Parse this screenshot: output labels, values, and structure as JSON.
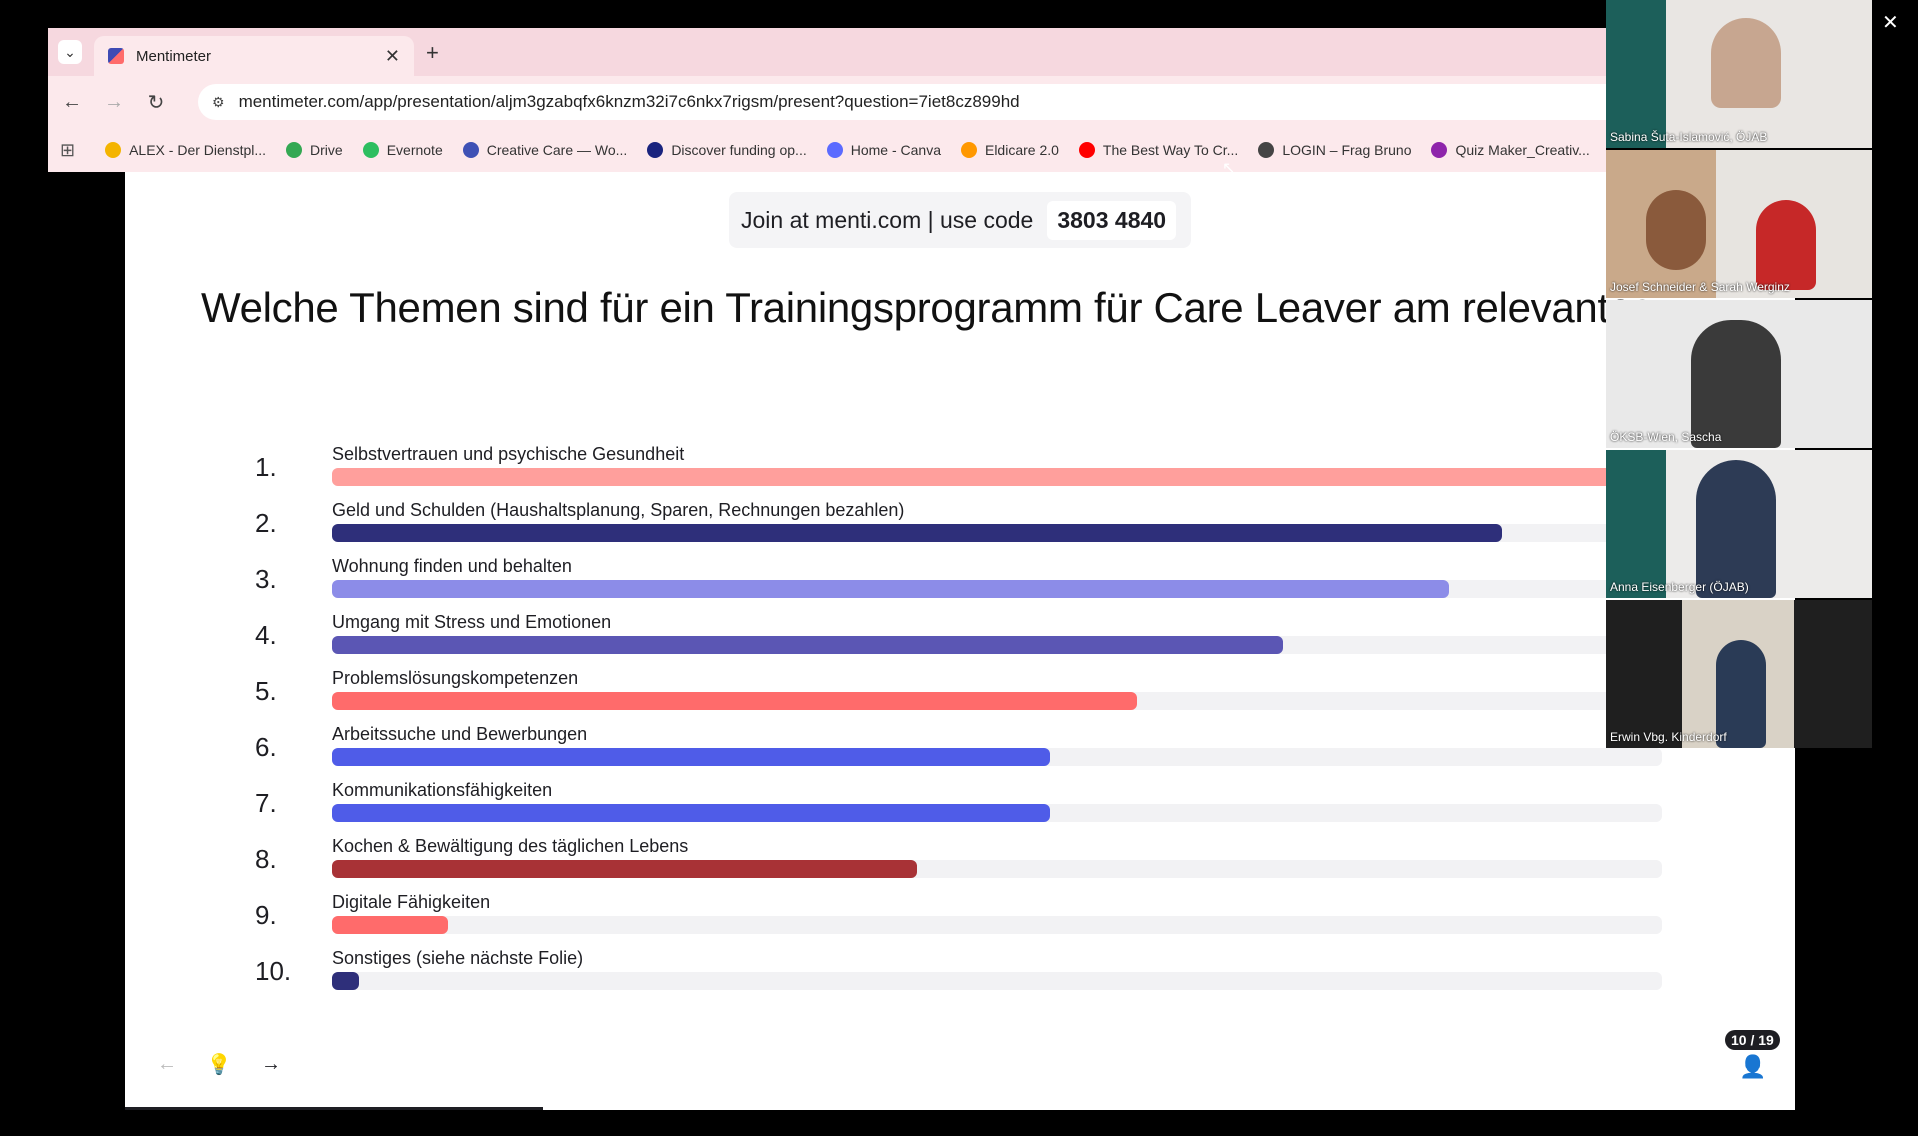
{
  "browser": {
    "tab_title": "Mentimeter",
    "url": "mentimeter.com/app/presentation/aljm3gzabqfx6knzm32i7c6nkx7rigsm/present?question=7iet8cz899hd",
    "bookmarks": [
      {
        "label": "ALEX - Der Dienstpl...",
        "color": "#f4b400"
      },
      {
        "label": "Drive",
        "color": "#34a853"
      },
      {
        "label": "Evernote",
        "color": "#2dbe60"
      },
      {
        "label": "Creative Care — Wo...",
        "color": "#3f51b5"
      },
      {
        "label": "Discover funding op...",
        "color": "#1a237e"
      },
      {
        "label": "Home - Canva",
        "color": "#5b6bff"
      },
      {
        "label": "Eldicare 2.0",
        "color": "#ff9800"
      },
      {
        "label": "The Best Way To Cr...",
        "color": "#ff0000"
      },
      {
        "label": "LOGIN – Frag Bruno",
        "color": "#444444"
      },
      {
        "label": "Quiz Maker_Creativ...",
        "color": "#8e24aa"
      }
    ]
  },
  "slide": {
    "join_text": "Join at menti.com | use code",
    "join_code": "3803 4840",
    "question": "Welche Themen sind für ein Trainingsprogramm für Care Leaver am relevantes",
    "counter": "10 / 19"
  },
  "chart_data": {
    "type": "bar",
    "categories": [
      "Selbstvertrauen und psychische Gesundheit",
      "Geld und Schulden (Haushaltsplanung, Sparen, Rechnungen bezahlen)",
      "Wohnung finden und behalten",
      "Umgang mit Stress und Emotionen",
      "Problemslösungskompetenzen",
      "Arbeitssuche und Bewerbungen",
      "Kommunikationsfähigkeiten",
      "Kochen & Bewältigung des täglichen Lebens",
      "Digitale Fähigkeiten",
      "Sonstiges (siehe nächste Folie)"
    ],
    "ranks": [
      "1.",
      "2.",
      "3.",
      "4.",
      "5.",
      "6.",
      "7.",
      "8.",
      "9.",
      "10."
    ],
    "values": [
      100,
      88,
      84,
      71.5,
      60.5,
      54,
      54,
      44,
      8.7,
      2
    ],
    "colors": [
      "#ff9f9c",
      "#2e2f7a",
      "#8c8ce8",
      "#5b56b4",
      "#ff6b6b",
      "#4f5ce8",
      "#4f5ce8",
      "#a83236",
      "#ff6b6b",
      "#2e2f7a"
    ],
    "ylim": [
      0,
      100
    ]
  },
  "participants": [
    {
      "name": "Sabina Šuta-Islamović, ÖJAB"
    },
    {
      "name": "Josef Schneider & Sarah Werginz"
    },
    {
      "name": "ÖKSB-Wien, Sascha"
    },
    {
      "name": "Anna Eisenberger (ÖJAB)"
    },
    {
      "name": "Erwin Vbg. Kinderdorf"
    }
  ]
}
